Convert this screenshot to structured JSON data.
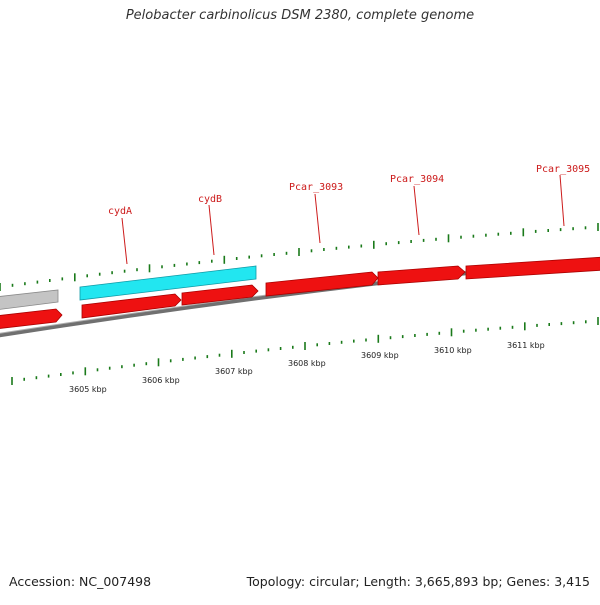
{
  "title": "Pelobacter carbinolicus DSM 2380, complete genome",
  "footer": {
    "accession": "Accession: NC_007498",
    "summary": "Topology: circular; Length: 3,665,893 bp; Genes: 3,415"
  },
  "colors": {
    "forward_gene": "#ee1111",
    "reverse_gene": "#ee1111",
    "highlight_gene": "#22e6f0",
    "other_gene": "#c0c0c0",
    "backbone": "#808080",
    "tick": "#1a7a1a",
    "gene_label": "#cc1a1a"
  },
  "gene_labels": [
    {
      "id": "cydA",
      "label": "cydA"
    },
    {
      "id": "cydB",
      "label": "cydB"
    },
    {
      "id": "Pcar_3093",
      "label": "Pcar_3093"
    },
    {
      "id": "Pcar_3094",
      "label": "Pcar_3094"
    },
    {
      "id": "Pcar_3095",
      "label": "Pcar_3095"
    }
  ],
  "ticks": [
    "3605 kbp",
    "3606 kbp",
    "3607 kbp",
    "3608 kbp",
    "3609 kbp",
    "3610 kbp",
    "3611 kbp"
  ]
}
